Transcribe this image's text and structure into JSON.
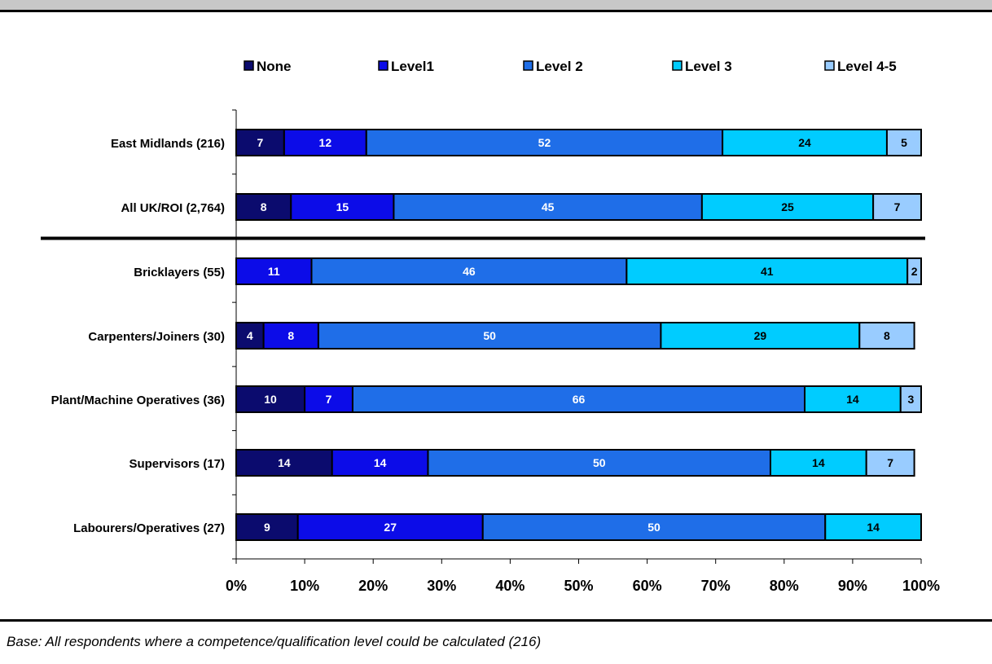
{
  "chart_data": {
    "type": "bar",
    "orientation": "horizontal",
    "stacked": true,
    "categories": [
      "East Midlands (216)",
      "All UK/ROI (2,764)",
      "Bricklayers (55)",
      "Carpenters/Joiners (30)",
      "Plant/Machine Operatives (36)",
      "Supervisors (17)",
      "Labourers/Operatives (27)"
    ],
    "series": [
      {
        "name": "None",
        "color": "#0b0b6e",
        "label_color": "#ffffff",
        "values": [
          7,
          8,
          0,
          4,
          10,
          14,
          9
        ]
      },
      {
        "name": "Level1",
        "color": "#0c0ce8",
        "label_color": "#ffffff",
        "values": [
          12,
          15,
          11,
          8,
          7,
          14,
          27
        ]
      },
      {
        "name": "Level 2",
        "color": "#1f6ee8",
        "label_color": "#ffffff",
        "values": [
          52,
          45,
          46,
          50,
          66,
          50,
          50
        ]
      },
      {
        "name": "Level 3",
        "color": "#00ccff",
        "label_color": "#000000",
        "values": [
          24,
          25,
          41,
          29,
          14,
          14,
          14
        ]
      },
      {
        "name": "Level 4-5",
        "color": "#99ccff",
        "label_color": "#000000",
        "values": [
          5,
          7,
          2,
          8,
          3,
          7,
          0
        ]
      }
    ],
    "xlim": [
      0,
      100
    ],
    "x_ticks": [
      "0%",
      "10%",
      "20%",
      "30%",
      "40%",
      "50%",
      "60%",
      "70%",
      "80%",
      "90%",
      "100%"
    ],
    "legend_position": "top",
    "divider_after_category": 1,
    "grid": false
  },
  "footnote": "Base: All respondents where a competence/qualification level could be calculated (216)"
}
